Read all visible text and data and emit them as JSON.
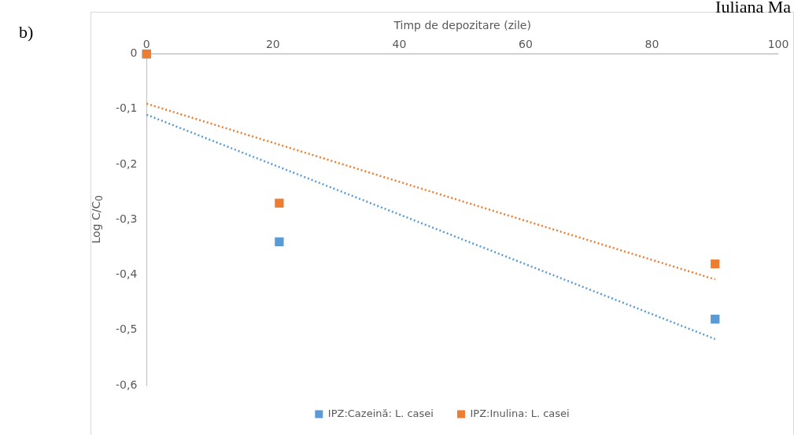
{
  "chart_data": {
    "type": "scatter",
    "xlabel": "Timp de depozitare (zile)",
    "ylabel": "Log C/C$_{0}$",
    "annotations": [
      "b)",
      "Iuliana Ma"
    ],
    "xlim": [
      0,
      100
    ],
    "xticks": [
      0,
      20,
      40,
      60,
      80,
      100
    ],
    "ylim": [
      -0.6,
      0
    ],
    "yticks": [
      {
        "value": 0,
        "label": "0"
      },
      {
        "value": -0.1,
        "label": "-0,1"
      },
      {
        "value": -0.2,
        "label": "-0,2"
      },
      {
        "value": -0.3,
        "label": "-0,3"
      },
      {
        "value": -0.4,
        "label": "-0,4"
      },
      {
        "value": -0.5,
        "label": "-0,5"
      },
      {
        "value": -0.6,
        "label": "-0,6"
      }
    ],
    "grid": false,
    "legend": "bottom",
    "marker": "square",
    "series": [
      {
        "name": "IPZ:Cazeină: L. casei",
        "color": "#5b9bd5",
        "x": [
          0,
          21,
          90
        ],
        "values": [
          0,
          -0.34,
          -0.48
        ]
      },
      {
        "name": "IPZ:Inulina: L. casei",
        "color": "#ed7d31",
        "x": [
          0,
          21,
          90
        ],
        "values": [
          0,
          -0.27,
          -0.38
        ]
      },
      {
        "type": "line",
        "line_style": "dotted",
        "marker": "none",
        "color": "#5b9bd5",
        "x": [
          0,
          90
        ],
        "values": [
          -0.11,
          -0.516
        ]
      },
      {
        "type": "line",
        "line_style": "dotted",
        "marker": "none",
        "color": "#ed7d31",
        "x": [
          0,
          90
        ],
        "values": [
          -0.09,
          -0.408
        ]
      }
    ]
  }
}
